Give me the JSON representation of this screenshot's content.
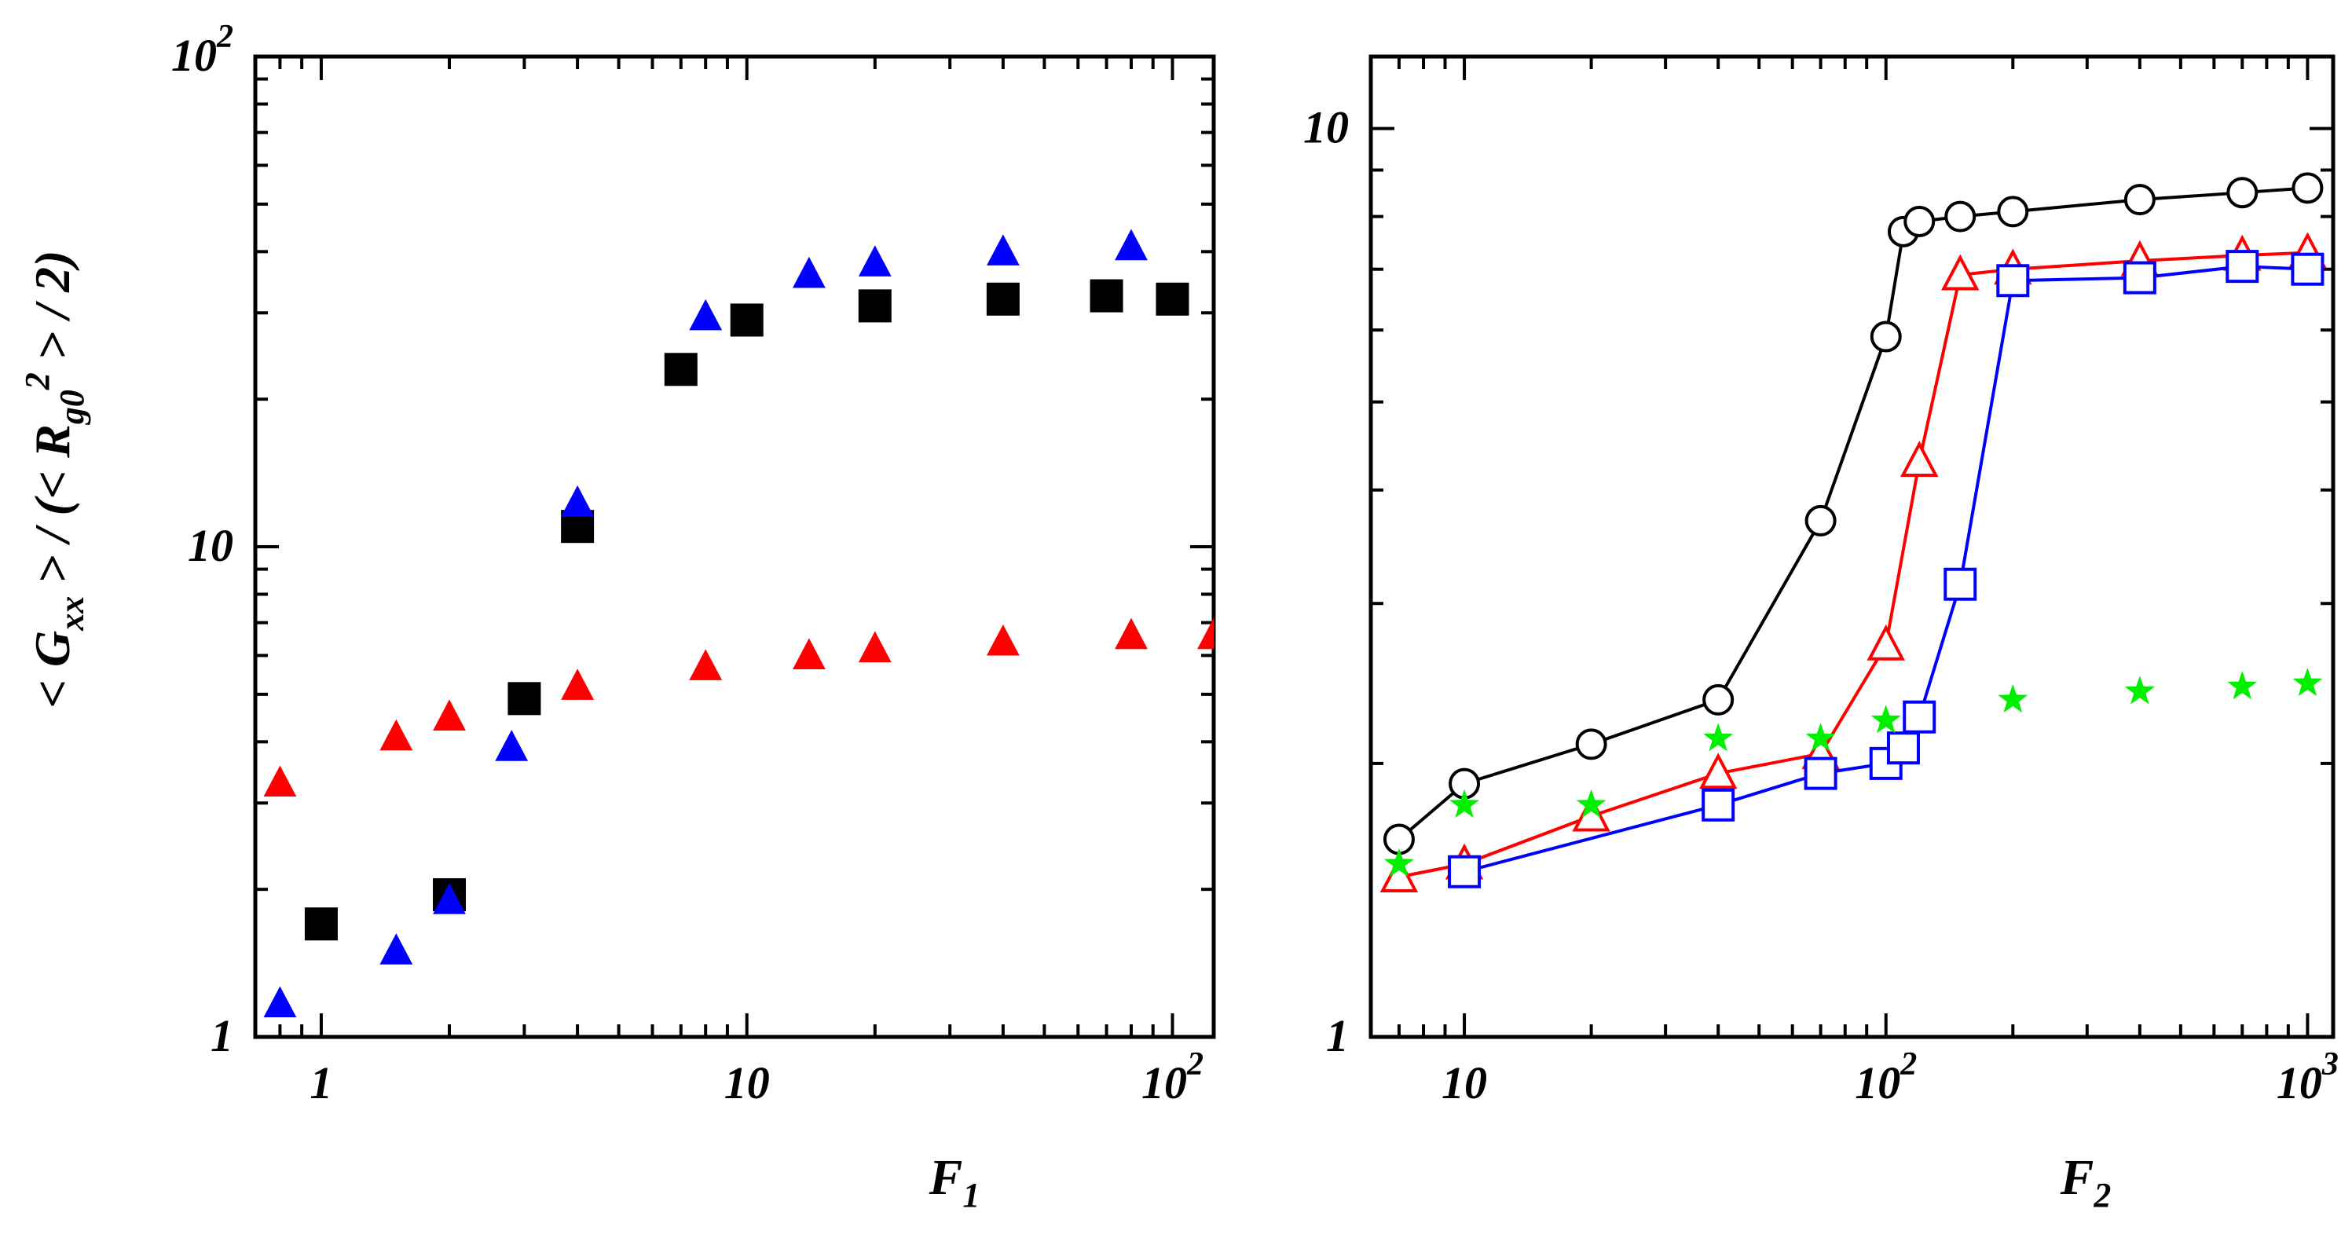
{
  "chart_data": [
    {
      "type": "scatter",
      "panel": "left",
      "xlabel": "F",
      "xlabel_sub": "1",
      "ylabel": "< G_xx > / (< R_g0^2 > / 2)",
      "xscale": "log",
      "yscale": "log",
      "xlim": [
        0.7,
        125
      ],
      "ylim": [
        1,
        100
      ],
      "x_ticks": [
        {
          "value": 1,
          "base": "1",
          "exp": ""
        },
        {
          "value": 10,
          "base": "10",
          "exp": ""
        },
        {
          "value": 100,
          "base": "10",
          "exp": "2"
        }
      ],
      "y_ticks": [
        {
          "value": 1,
          "base": "1",
          "exp": ""
        },
        {
          "value": 10,
          "base": "10",
          "exp": ""
        },
        {
          "value": 100,
          "base": "10",
          "exp": "2"
        }
      ],
      "series": [
        {
          "name": "black squares",
          "marker": "square-filled",
          "color": "#000000",
          "x": [
            1.0,
            2.0,
            3.0,
            4.0,
            7.0,
            10.0,
            20.0,
            40.0,
            70.0,
            100.0
          ],
          "y": [
            1.7,
            1.95,
            4.9,
            11.0,
            23.0,
            29.0,
            31.0,
            32.0,
            32.5,
            32.0
          ]
        },
        {
          "name": "blue triangles",
          "marker": "triangle-filled",
          "color": "#0000ff",
          "x": [
            0.8,
            1.5,
            2.0,
            2.8,
            4.0,
            8.0,
            14.0,
            20.0,
            40.0,
            80.0
          ],
          "y": [
            1.17,
            1.5,
            1.9,
            3.9,
            12.3,
            29.5,
            36.0,
            38.0,
            40.0,
            41.0
          ]
        },
        {
          "name": "red triangles",
          "marker": "triangle-filled",
          "color": "#ff0000",
          "x": [
            0.8,
            1.5,
            2.0,
            4.0,
            8.0,
            14.0,
            20.0,
            40.0,
            80.0,
            125.0
          ],
          "y": [
            3.3,
            4.1,
            4.5,
            5.2,
            5.7,
            6.0,
            6.2,
            6.4,
            6.6,
            6.6
          ]
        }
      ]
    },
    {
      "type": "line",
      "panel": "right",
      "xlabel": "F",
      "xlabel_sub": "2",
      "xscale": "log",
      "yscale": "log",
      "xlim": [
        6.0,
        1150
      ],
      "ylim": [
        1,
        12
      ],
      "x_ticks": [
        {
          "value": 10,
          "base": "10",
          "exp": ""
        },
        {
          "value": 100,
          "base": "10",
          "exp": "2"
        },
        {
          "value": 1000,
          "base": "10",
          "exp": "3"
        }
      ],
      "y_ticks": [
        {
          "value": 1,
          "base": "1",
          "exp": ""
        },
        {
          "value": 10,
          "base": "10",
          "exp": ""
        }
      ],
      "series": [
        {
          "name": "black circles",
          "marker": "circle-open",
          "color": "#000000",
          "line": true,
          "x": [
            7,
            10,
            20,
            40,
            70,
            100,
            110,
            120,
            150,
            200,
            400,
            700,
            1000
          ],
          "y": [
            1.65,
            1.9,
            2.1,
            2.35,
            3.7,
            5.9,
            7.7,
            7.9,
            8.0,
            8.1,
            8.35,
            8.5,
            8.6
          ]
        },
        {
          "name": "red triangles",
          "marker": "triangle-open",
          "color": "#ff0000",
          "line": true,
          "x": [
            7,
            10,
            20,
            40,
            70,
            100,
            120,
            150,
            200,
            400,
            700,
            1000
          ],
          "y": [
            1.5,
            1.55,
            1.75,
            1.95,
            2.05,
            2.7,
            4.3,
            6.9,
            7.0,
            7.15,
            7.25,
            7.3
          ]
        },
        {
          "name": "blue squares",
          "marker": "square-open",
          "color": "#0000ff",
          "line": true,
          "x": [
            10,
            40,
            70,
            100,
            110,
            120,
            150,
            200,
            400,
            700,
            1000
          ],
          "y": [
            1.52,
            1.8,
            1.95,
            2.0,
            2.08,
            2.25,
            3.15,
            6.8,
            6.85,
            7.05,
            7.0
          ]
        },
        {
          "name": "green stars",
          "marker": "star-filled",
          "color": "#00ee00",
          "line": false,
          "x": [
            7,
            10,
            20,
            40,
            70,
            100,
            200,
            400,
            700,
            1000
          ],
          "y": [
            1.55,
            1.8,
            1.8,
            2.13,
            2.13,
            2.23,
            2.35,
            2.4,
            2.43,
            2.45
          ]
        }
      ]
    }
  ]
}
